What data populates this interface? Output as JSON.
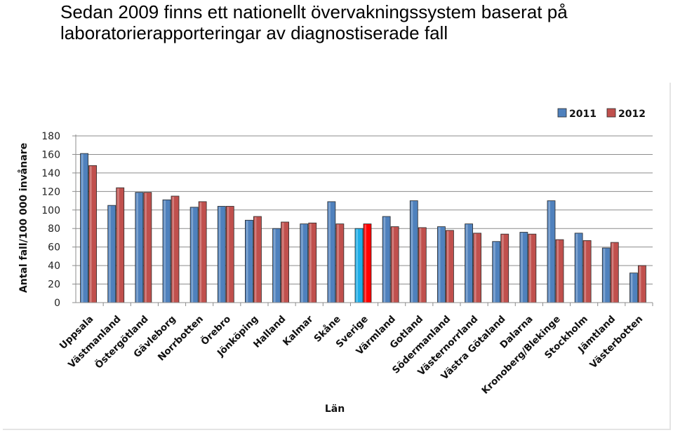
{
  "slide": {
    "title_line1": "Sedan 2009 finns ett nationellt övervakningssystem baserat på",
    "title_line2": "laboratorierapporteringar av diagnostiserade fall"
  },
  "chart_data": {
    "type": "bar",
    "title": "",
    "xlabel": "Län",
    "ylabel": "Antal fall/100 000 invånare",
    "ylim": [
      0,
      180
    ],
    "yticks": [
      0,
      20,
      40,
      60,
      80,
      100,
      120,
      140,
      160,
      180
    ],
    "grid": true,
    "legend_position": "top-right",
    "categories": [
      "Uppsala",
      "Västmanland",
      "Östergötland",
      "Gävleborg",
      "Norrbotten",
      "Örebro",
      "Jönköping",
      "Halland",
      "Kalmar",
      "Skåne",
      "Sverige",
      "Värmland",
      "Gotland",
      "Södermanland",
      "Västernorrland",
      "Västra Götaland",
      "Dalarna",
      "Kronoberg/Blekinge",
      "Stockholm",
      "Jämtland",
      "Västerbotten"
    ],
    "series": [
      {
        "name": "2011",
        "color": "#4F81BD",
        "values": [
          161,
          105,
          119,
          111,
          103,
          104,
          89,
          80,
          85,
          109,
          80,
          93,
          110,
          82,
          85,
          66,
          76,
          110,
          75,
          59,
          32
        ]
      },
      {
        "name": "2012",
        "color": "#C0504D",
        "values": [
          148,
          124,
          119,
          115,
          109,
          104,
          93,
          87,
          86,
          85,
          85,
          82,
          81,
          78,
          75,
          74,
          74,
          68,
          67,
          65,
          40
        ]
      }
    ],
    "highlight": {
      "category": "Sverige",
      "colors": [
        "#1EAEE8",
        "#FF0000"
      ]
    }
  }
}
